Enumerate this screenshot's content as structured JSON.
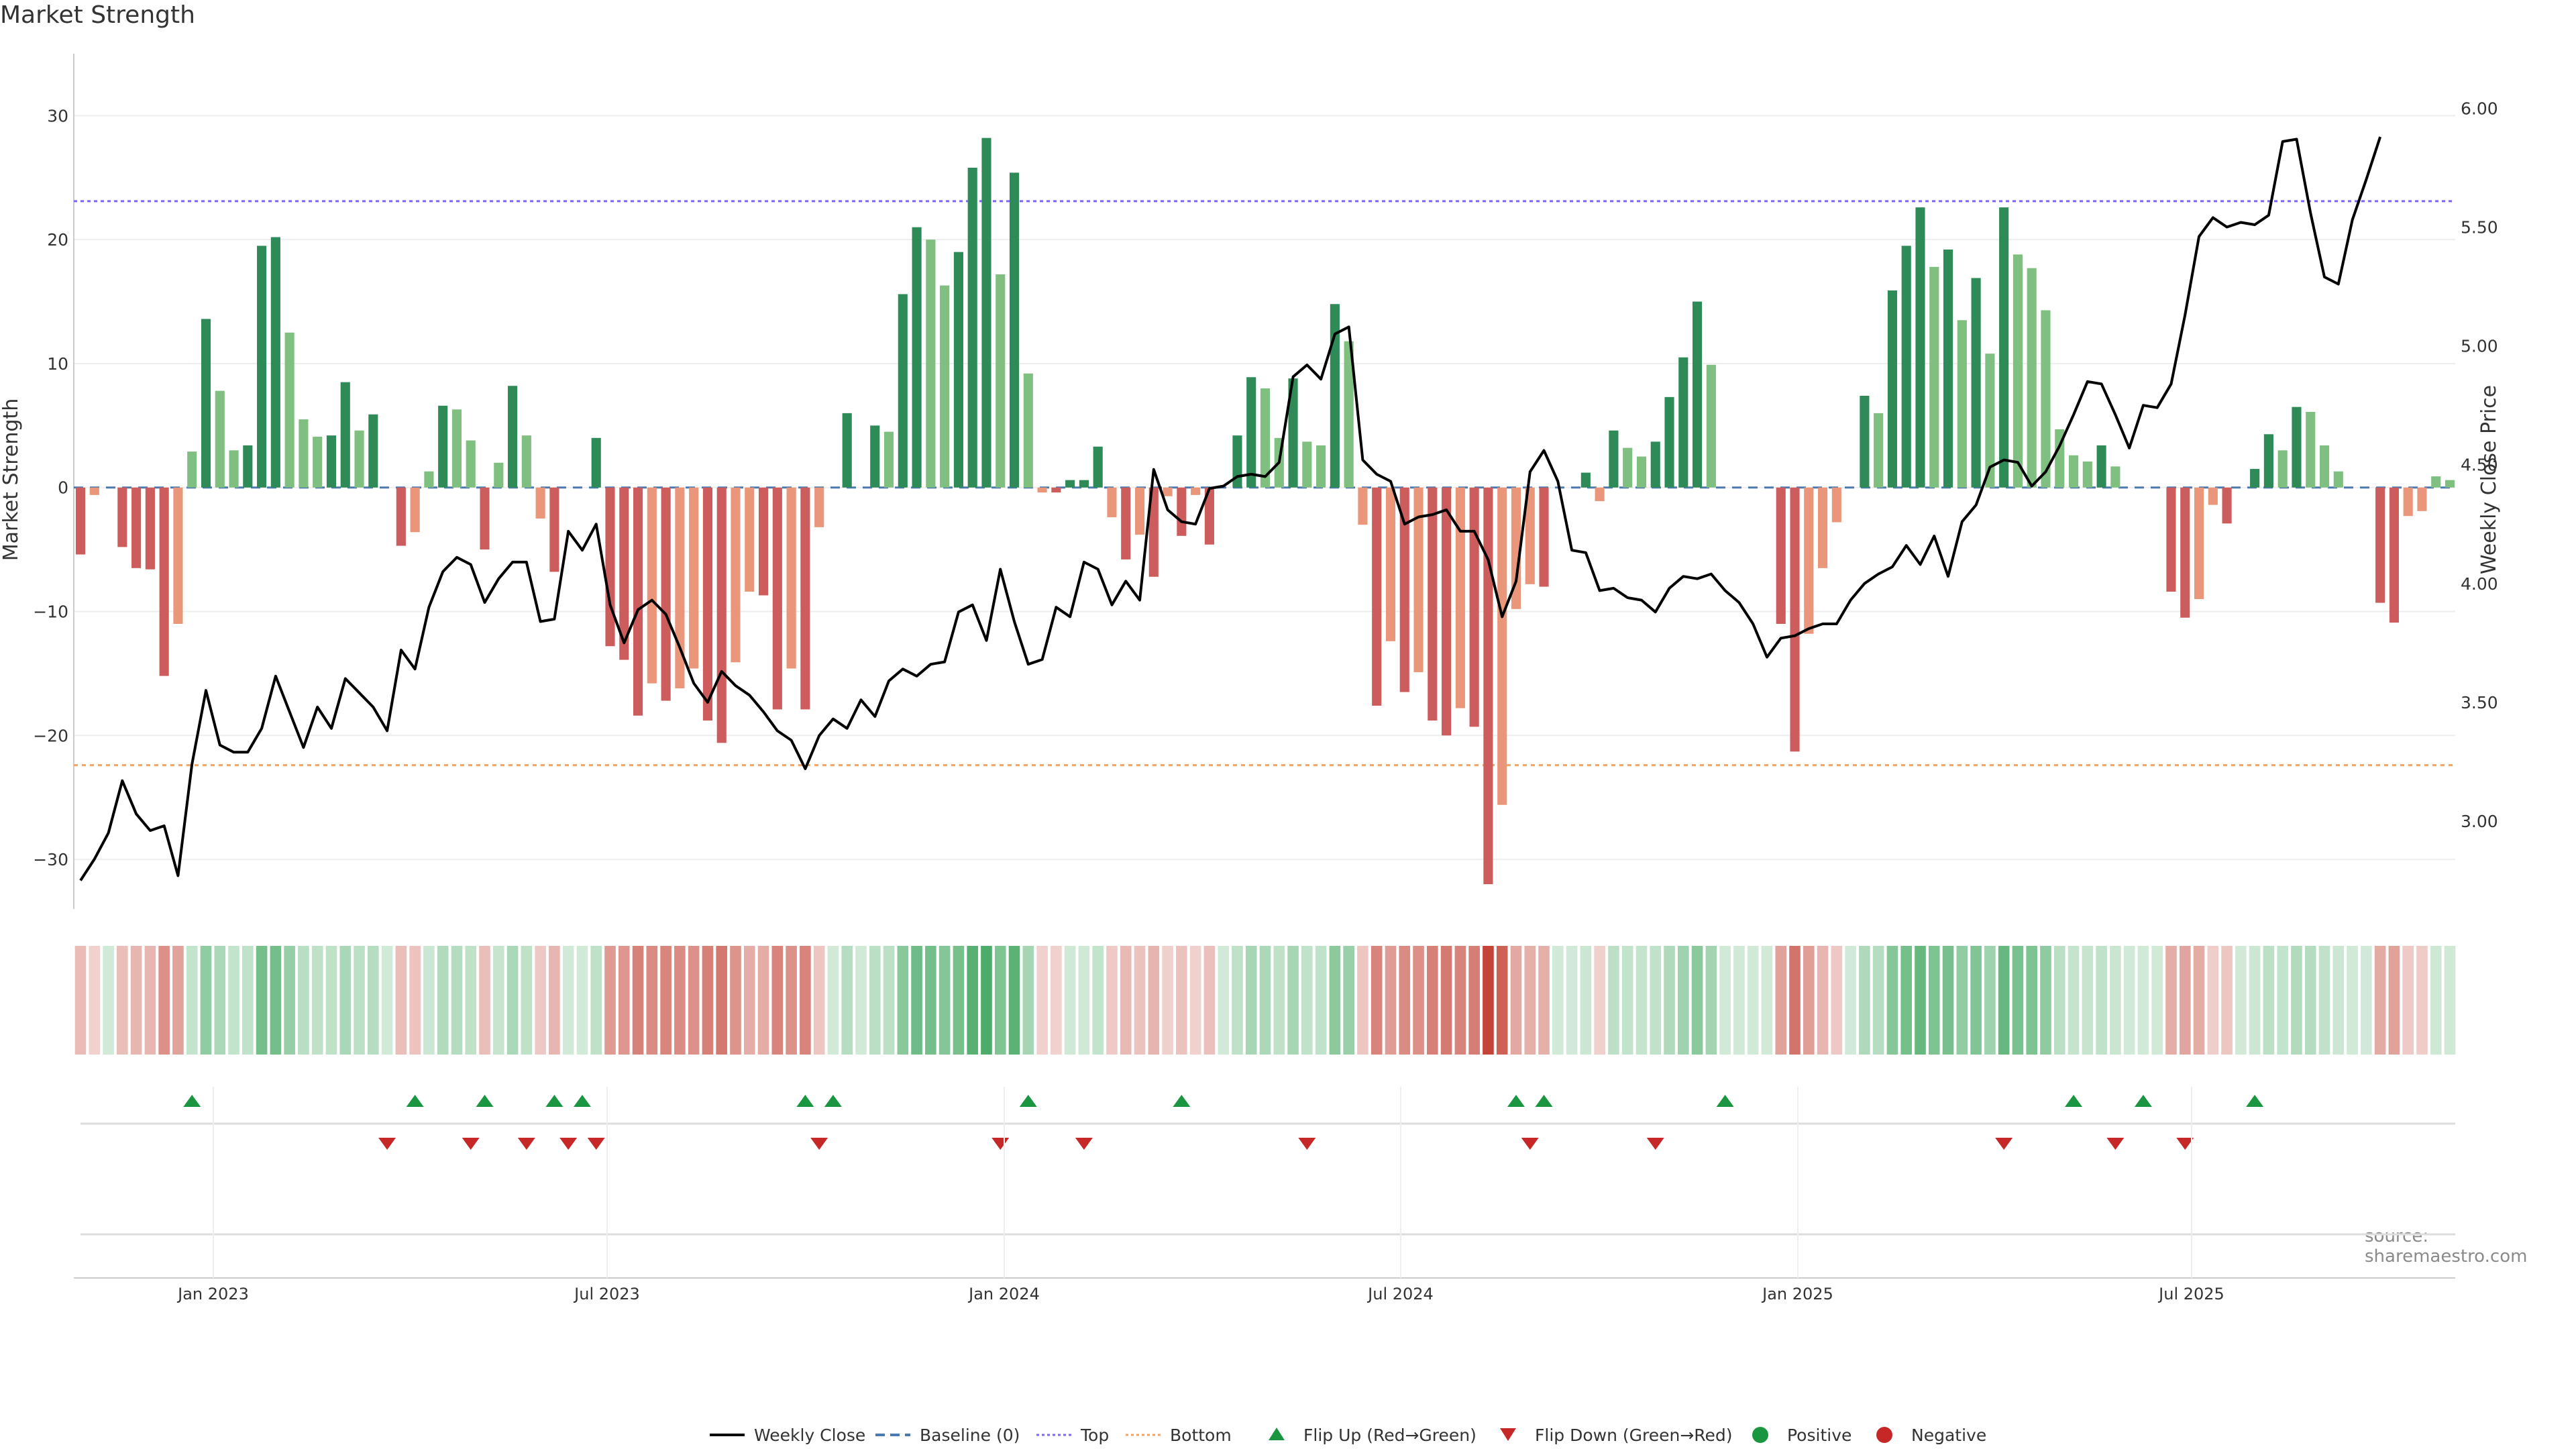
{
  "chart_data": {
    "type": "bar",
    "title": "Market Strength",
    "ylabel": "Market Strength",
    "y2label": "Weekly Close Price",
    "ylim": [
      -34,
      35
    ],
    "y2lim": [
      2.63,
      6.23
    ],
    "yticks": [
      30,
      20,
      10,
      0,
      -10,
      -20,
      -30
    ],
    "yticklabels": [
      "30",
      "20",
      "10",
      "0",
      "−10",
      "−20",
      "−30"
    ],
    "y2ticks": [
      6.0,
      5.5,
      5.0,
      4.5,
      4.0,
      3.5,
      3.0
    ],
    "y2ticklabels": [
      "6.00",
      "5.50",
      "5.00",
      "4.50",
      "4.00",
      "3.50",
      "3.00"
    ],
    "xticks": [
      "Jan 2023",
      "Jul 2023",
      "Jan 2024",
      "Jul 2024",
      "Jan 2025",
      "Jul 2025"
    ],
    "top_line": 23.1,
    "bottom_line": -22.4,
    "baseline": 0,
    "grid": true,
    "legend_position": "bottom-center",
    "colors": {
      "green_dark": "#2e8b57",
      "green_light": "#7fbf7f",
      "red_dark": "#cd5c5c",
      "red_light": "#e9967a",
      "close_line": "#000000",
      "top_line": "#7b68ee",
      "bottom_line": "#f4a460",
      "baseline": "#4a7ab0",
      "flip_up": "#1a9641",
      "flip_down": "#c62828"
    },
    "series": [
      {
        "name": "Market Strength",
        "values": [
          -5.4,
          -0.6,
          0,
          -4.8,
          -6.5,
          -6.6,
          -15.2,
          -11,
          2.9,
          13.6,
          7.8,
          3,
          3.4,
          19.5,
          20.2,
          12.5,
          5.5,
          4.1,
          4.2,
          8.5,
          4.6,
          5.9,
          0,
          -4.7,
          -3.6,
          1.3,
          6.6,
          6.3,
          3.8,
          -5,
          2,
          8.2,
          4.2,
          -2.5,
          -6.8,
          0,
          0,
          4,
          -12.8,
          -13.9,
          -18.4,
          -15.8,
          -17.2,
          -16.2,
          -14.6,
          -18.8,
          -20.6,
          -14.1,
          -8.4,
          -8.7,
          -17.9,
          -14.6,
          -17.9,
          -3.2,
          0,
          6,
          0,
          5,
          4.5,
          15.6,
          21,
          20,
          16.3,
          19,
          25.8,
          28.2,
          17.2,
          25.4,
          9.2,
          -0.4,
          -0.4,
          0.6,
          0.6,
          3.3,
          -2.4,
          -5.8,
          -3.8,
          -7.2,
          -0.7,
          -3.9,
          -0.6,
          -4.6,
          0,
          4.2,
          8.9,
          8,
          4,
          8.8,
          3.7,
          3.4,
          14.8,
          11.8,
          -3,
          -17.6,
          -12.4,
          -16.5,
          -14.9,
          -18.8,
          -20,
          -17.8,
          -19.3,
          -32,
          -25.6,
          -9.8,
          -7.8,
          -8,
          0,
          0,
          1.2,
          -1.1,
          4.6,
          3.2,
          2.5,
          3.7,
          7.3,
          10.5,
          15,
          9.9,
          0,
          0,
          0,
          0,
          -11,
          -21.3,
          -11.8,
          -6.5,
          -2.8,
          0,
          7.4,
          6,
          15.9,
          19.5,
          22.6,
          17.8,
          19.2,
          13.5,
          16.9,
          10.8,
          22.6,
          18.8,
          17.7,
          14.3,
          4.7,
          2.6,
          2.1,
          3.4,
          1.7,
          0,
          0,
          0,
          -8.4,
          -10.5,
          -9,
          -1.4,
          -2.9,
          0,
          1.5,
          4.3,
          3,
          6.5,
          6.1,
          3.4,
          1.3,
          0,
          0,
          -9.3,
          -10.9,
          -2.3,
          -1.9,
          0.9,
          0.6
        ]
      },
      {
        "name": "Weekly Close",
        "values": [
          2.75,
          2.84,
          2.95,
          3.17,
          3.03,
          2.96,
          2.98,
          2.77,
          3.24,
          3.55,
          3.32,
          3.29,
          3.29,
          3.39,
          3.61,
          3.46,
          3.31,
          3.48,
          3.39,
          3.6,
          3.54,
          3.48,
          3.38,
          3.72,
          3.64,
          3.9,
          4.05,
          4.11,
          4.08,
          3.92,
          4.02,
          4.09,
          4.09,
          3.84,
          3.85,
          4.22,
          4.14,
          4.25,
          3.91,
          3.75,
          3.89,
          3.93,
          3.87,
          3.73,
          3.58,
          3.5,
          3.63,
          3.57,
          3.53,
          3.46,
          3.38,
          3.34,
          3.22,
          3.36,
          3.43,
          3.39,
          3.51,
          3.44,
          3.59,
          3.64,
          3.61,
          3.66,
          3.67,
          3.88,
          3.91,
          3.76,
          4.06,
          3.84,
          3.66,
          3.68,
          3.9,
          3.86,
          4.09,
          4.06,
          3.91,
          4.01,
          3.93,
          4.48,
          4.31,
          4.26,
          4.25,
          4.4,
          4.41,
          4.45,
          4.46,
          4.45,
          4.51,
          4.87,
          4.92,
          4.86,
          5.05,
          5.08,
          4.52,
          4.46,
          4.43,
          4.25,
          4.28,
          4.29,
          4.31,
          4.22,
          4.22,
          4.1,
          3.86,
          4.01,
          4.47,
          4.56,
          4.43,
          4.14,
          4.13,
          3.97,
          3.98,
          3.94,
          3.93,
          3.88,
          3.98,
          4.03,
          4.02,
          4.04,
          3.97,
          3.92,
          3.83,
          3.69,
          3.77,
          3.78,
          3.81,
          3.83,
          3.83,
          3.93,
          4.0,
          4.04,
          4.07,
          4.16,
          4.08,
          4.2,
          4.03,
          4.26,
          4.33,
          4.49,
          4.52,
          4.51,
          4.41,
          4.47,
          4.58,
          4.71,
          4.85,
          4.84,
          4.71,
          4.57,
          4.75,
          4.74,
          4.84,
          5.13,
          5.46,
          5.54,
          5.5,
          5.52,
          5.51,
          5.55,
          5.86,
          5.87,
          5.56,
          5.29,
          5.26,
          5.53,
          5.7,
          5.88
        ]
      }
    ],
    "flip_up_indices": [
      8,
      24,
      29,
      34,
      36,
      52,
      54,
      68,
      79,
      103,
      105,
      118,
      143,
      148,
      156
    ],
    "flip_down_indices": [
      22,
      28,
      32,
      35,
      37,
      53,
      66,
      72,
      88,
      104,
      113,
      138,
      146,
      151
    ]
  },
  "legend": {
    "items": [
      {
        "label": "Weekly Close",
        "icon": "solid-line"
      },
      {
        "label": "Baseline (0)",
        "icon": "dashed-line"
      },
      {
        "label": "Top",
        "icon": "dotted-line"
      },
      {
        "label": "Bottom",
        "icon": "dotted-line"
      },
      {
        "label": "Flip Up (Red→Green)",
        "icon": "triangle-up"
      },
      {
        "label": "Flip Down (Green→Red)",
        "icon": "triangle-down"
      },
      {
        "label": "Positive",
        "icon": "dot"
      },
      {
        "label": "Negative",
        "icon": "dot"
      }
    ]
  },
  "source": "source: sharemaestro.com"
}
